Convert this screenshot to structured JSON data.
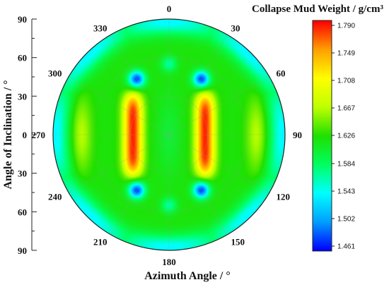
{
  "chart_data": {
    "type": "heatmap",
    "subtype": "polar-contour",
    "colorbar_title": "Collapse Mud Weight / g/cm³",
    "xlabel": "Azimuth Angle / °",
    "ylabel": "Angle of Inclination / °",
    "azimuth_tick_labels": [
      "0",
      "30",
      "60",
      "90",
      "120",
      "150",
      "180",
      "210",
      "240",
      "270",
      "300",
      "330"
    ],
    "azimuth_ticks": [
      0,
      30,
      60,
      90,
      120,
      150,
      180,
      210,
      240,
      270,
      300,
      330
    ],
    "inclination_tick_labels_top": [
      "90",
      "60",
      "30",
      "0"
    ],
    "inclination_tick_labels_bottom": [
      "30",
      "60",
      "90"
    ],
    "inclination_range": [
      0,
      90
    ],
    "colorbar_tick_labels": [
      "1.790",
      "1.749",
      "1.708",
      "1.667",
      "1.626",
      "1.584",
      "1.543",
      "1.502",
      "1.461"
    ],
    "colorbar_ticks": [
      1.79,
      1.749,
      1.708,
      1.667,
      1.626,
      1.584,
      1.543,
      1.502,
      1.461
    ],
    "value_range": [
      1.44,
      1.81
    ],
    "colormap": [
      "#0000ff",
      "#00a0ff",
      "#00ffff",
      "#00ff60",
      "#20e000",
      "#c0ff00",
      "#ffff00",
      "#ffa000",
      "#ff0000"
    ],
    "notable_features": [
      {
        "label": "max",
        "value": 1.8,
        "inclination": 30,
        "azimuth": 40
      },
      {
        "label": "max",
        "value": 1.8,
        "inclination": 30,
        "azimuth": 140
      },
      {
        "label": "max",
        "value": 1.8,
        "inclination": 30,
        "azimuth": 220
      },
      {
        "label": "max",
        "value": 1.8,
        "inclination": 30,
        "azimuth": 320
      },
      {
        "label": "min",
        "value": 1.46,
        "inclination": 50,
        "azimuth": 30
      },
      {
        "label": "min",
        "value": 1.46,
        "inclination": 50,
        "azimuth": 150
      },
      {
        "label": "min",
        "value": 1.46,
        "inclination": 50,
        "azimuth": 210
      },
      {
        "label": "min",
        "value": 1.46,
        "inclination": 50,
        "azimuth": 330
      }
    ]
  }
}
